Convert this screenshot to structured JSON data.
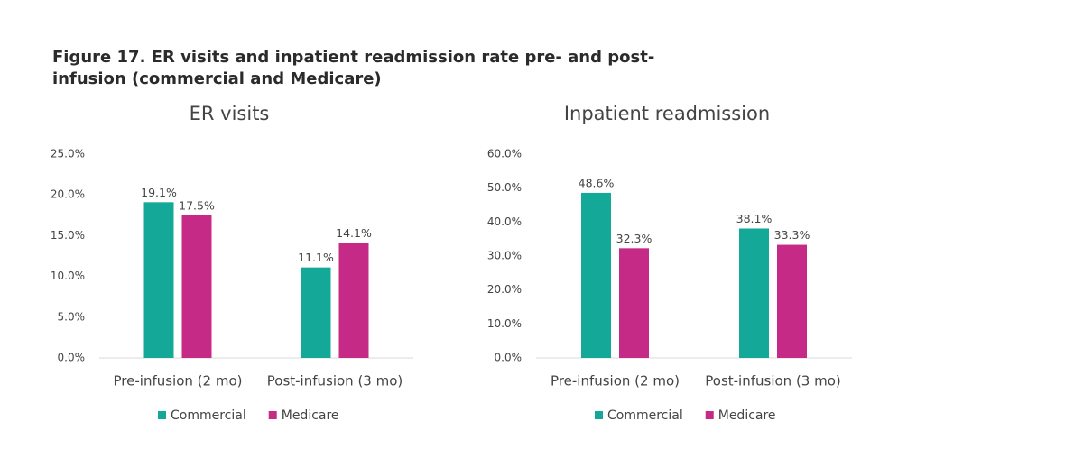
{
  "figure_title": "Figure 17. ER visits and inpatient readmission rate pre- and post-infusion (commercial and Medicare)",
  "chart_data": [
    {
      "type": "bar",
      "title": "ER visits",
      "categories": [
        "Pre-infusion (2 mo)",
        "Post-infusion (3 mo)"
      ],
      "series": [
        {
          "name": "Commercial",
          "color": "#14a898",
          "values": [
            19.1,
            11.1
          ],
          "value_labels": [
            "19.1%",
            "11.1%"
          ]
        },
        {
          "name": "Medicare",
          "color": "#c52a87",
          "values": [
            17.5,
            14.1
          ],
          "value_labels": [
            "17.5%",
            "14.1%"
          ]
        }
      ],
      "ylim": [
        0,
        25
      ],
      "yticks": [
        {
          "value": 0,
          "label": "0.0%"
        },
        {
          "value": 5,
          "label": "5.0%"
        },
        {
          "value": 10,
          "label": "10.0%"
        },
        {
          "value": 15,
          "label": "15.0%"
        },
        {
          "value": 20,
          "label": "20.0%"
        },
        {
          "value": 25,
          "label": "25.0%"
        }
      ],
      "grid": false,
      "legend": "bottom"
    },
    {
      "type": "bar",
      "title": "Inpatient readmission",
      "categories": [
        "Pre-infusion (2 mo)",
        "Post-infusion (3 mo)"
      ],
      "series": [
        {
          "name": "Commercial",
          "color": "#14a898",
          "values": [
            48.6,
            38.1
          ],
          "value_labels": [
            "48.6%",
            "38.1%"
          ]
        },
        {
          "name": "Medicare",
          "color": "#c52a87",
          "values": [
            32.3,
            33.3
          ],
          "value_labels": [
            "32.3%",
            "33.3%"
          ]
        }
      ],
      "ylim": [
        0,
        60
      ],
      "yticks": [
        {
          "value": 0,
          "label": "0.0%"
        },
        {
          "value": 10,
          "label": "10.0%"
        },
        {
          "value": 20,
          "label": "20.0%"
        },
        {
          "value": 30,
          "label": "30.0%"
        },
        {
          "value": 40,
          "label": "40.0%"
        },
        {
          "value": 50,
          "label": "50.0%"
        },
        {
          "value": 60,
          "label": "60.0%"
        }
      ],
      "grid": false,
      "legend": "bottom"
    }
  ]
}
